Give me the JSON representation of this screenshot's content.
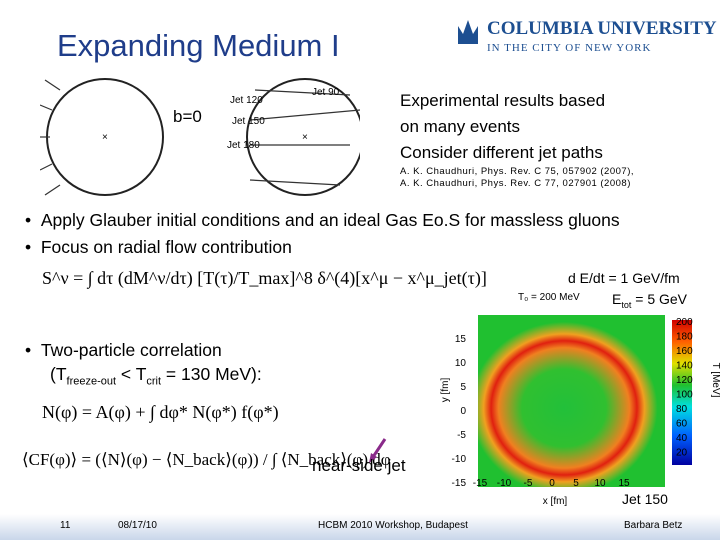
{
  "header": {
    "title": "Expanding Medium I",
    "logo_name": "COLUMBIA UNIVERSITY",
    "logo_sub": "IN THE CITY OF NEW YORK"
  },
  "diagram": {
    "impact": "b=0",
    "jets": [
      "Jet 90",
      "Jet 120",
      "Jet 150",
      "Jet 180"
    ]
  },
  "notes": {
    "lines": [
      "Experimental results based",
      "on many events",
      "Consider different jet paths"
    ],
    "refs": [
      "A. K. Chaudhuri, Phys. Rev. C 75, 057902 (2007),",
      "A. K. Chaudhuri, Phys. Rev. C 77, 027901 (2008)"
    ]
  },
  "bullets": [
    "Apply Glauber initial conditions and an ideal Gas Eo.S for massless gluons",
    "Focus on radial flow contribution"
  ],
  "formulas": {
    "source": "S^ν = ∫ dτ (dM^ν/dτ) [T(τ)/T_max]^8 δ^(4)[x^μ − x^μ_jet(τ)]",
    "correlation": "N(φ) = A(φ) + ∫ dφ* N(φ*) f(φ*)",
    "cf": "⟨CF(φ)⟩ = (⟨N⟩(φ) − ⟨N_back⟩(φ)) / ∫ ⟨N_back⟩(φ) dφ"
  },
  "correlation": {
    "bullet": "Two-particle correlation",
    "open": "(T",
    "freeze": "freeze-out",
    "lt": " < T",
    "crit": "crit",
    "rest": " = 130 MeV):"
  },
  "annotation": "near-side jet",
  "plot": {
    "dedt": "d E/dt = 1 GeV/fm",
    "etot_a": "E",
    "etot_sub": "tot",
    "etot_b": " = 5 GeV",
    "t0": "T₀ = 200 MeV",
    "xlabel": "x [fm]",
    "ylabel": "y [fm]",
    "cblabel": "T [MeV]",
    "xticks": [
      -15,
      -10,
      -5,
      0,
      5,
      10,
      15
    ],
    "yticks": [
      15,
      10,
      5,
      0,
      -5,
      -10,
      -15
    ],
    "cbticks": [
      200,
      180,
      160,
      140,
      120,
      100,
      80,
      60,
      40,
      20
    ],
    "caption": "Jet 150"
  },
  "footer": {
    "page": "11",
    "date": "08/17/10",
    "event": "HCBM 2010 Workshop, Budapest",
    "author": "Barbara Betz"
  }
}
